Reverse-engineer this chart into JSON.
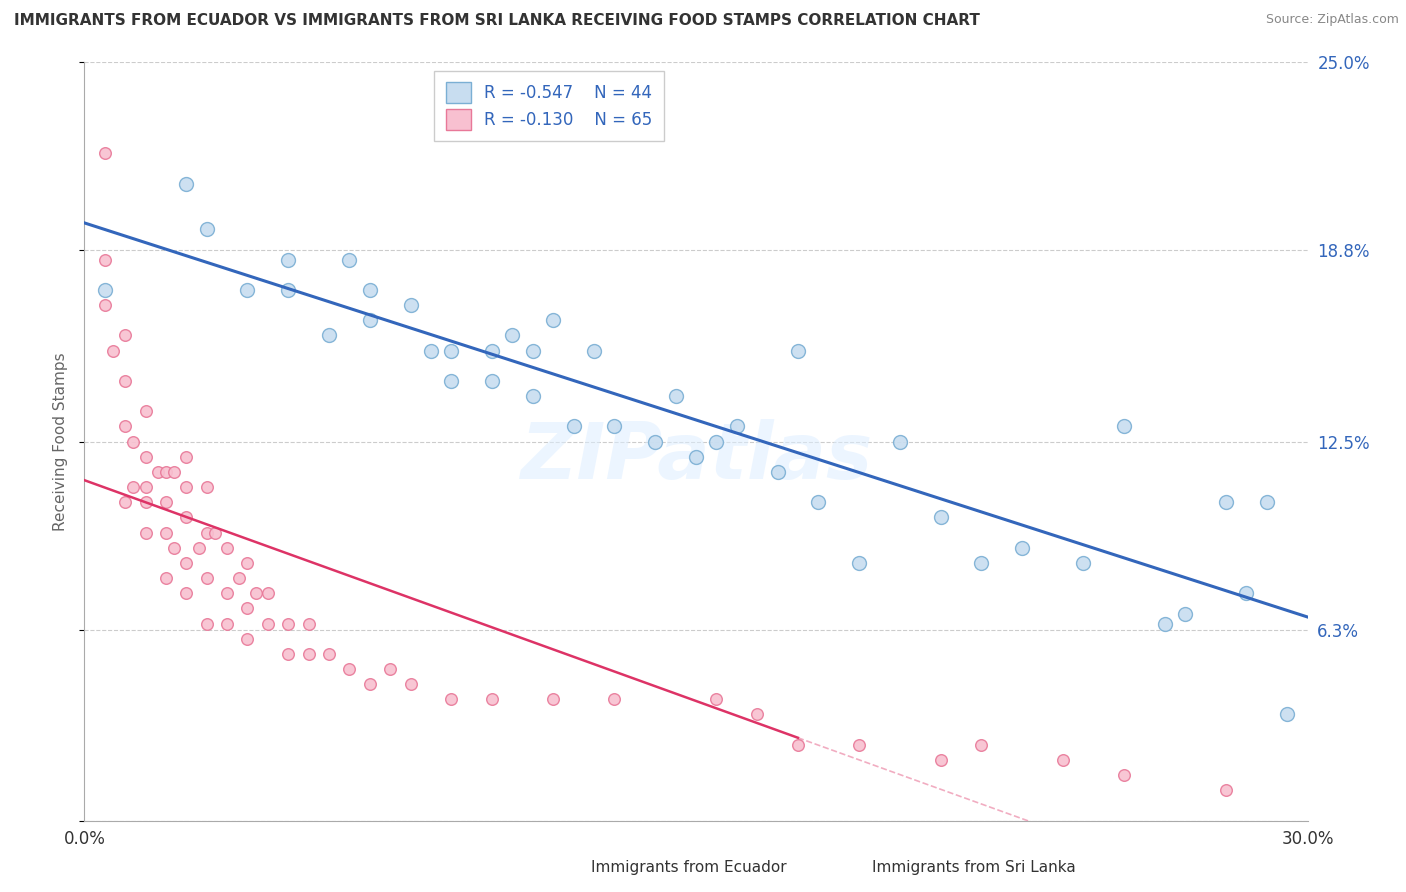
{
  "title": "IMMIGRANTS FROM ECUADOR VS IMMIGRANTS FROM SRI LANKA RECEIVING FOOD STAMPS CORRELATION CHART",
  "source": "Source: ZipAtlas.com",
  "ylabel": "Receiving Food Stamps",
  "xlim": [
    0.0,
    0.3
  ],
  "ylim": [
    0.0,
    0.25
  ],
  "legend_ecuador": {
    "R": "-0.547",
    "N": "44",
    "color": "#b8d4ea"
  },
  "legend_sri_lanka": {
    "R": "-0.130",
    "N": "65",
    "color": "#f5b8c8"
  },
  "ecuador_color": "#c8ddf0",
  "ecuador_edge": "#7bafd4",
  "sri_lanka_color": "#f8c0d0",
  "sri_lanka_edge": "#e87898",
  "regression_ecuador_color": "#3366bb",
  "regression_sri_lanka_color": "#dd3366",
  "watermark": "ZIPatlas",
  "ecuador_x": [
    0.005,
    0.025,
    0.03,
    0.04,
    0.05,
    0.05,
    0.06,
    0.065,
    0.07,
    0.07,
    0.08,
    0.085,
    0.09,
    0.09,
    0.1,
    0.1,
    0.105,
    0.11,
    0.11,
    0.115,
    0.12,
    0.125,
    0.13,
    0.14,
    0.145,
    0.15,
    0.155,
    0.16,
    0.17,
    0.175,
    0.18,
    0.19,
    0.2,
    0.21,
    0.22,
    0.23,
    0.245,
    0.255,
    0.265,
    0.27,
    0.28,
    0.285,
    0.29,
    0.295
  ],
  "ecuador_y": [
    0.175,
    0.21,
    0.195,
    0.175,
    0.175,
    0.185,
    0.16,
    0.185,
    0.165,
    0.175,
    0.17,
    0.155,
    0.155,
    0.145,
    0.145,
    0.155,
    0.16,
    0.14,
    0.155,
    0.165,
    0.13,
    0.155,
    0.13,
    0.125,
    0.14,
    0.12,
    0.125,
    0.13,
    0.115,
    0.155,
    0.105,
    0.085,
    0.125,
    0.1,
    0.085,
    0.09,
    0.085,
    0.13,
    0.065,
    0.068,
    0.105,
    0.075,
    0.105,
    0.035
  ],
  "sri_lanka_x": [
    0.005,
    0.005,
    0.005,
    0.007,
    0.01,
    0.01,
    0.01,
    0.01,
    0.012,
    0.012,
    0.015,
    0.015,
    0.015,
    0.015,
    0.015,
    0.018,
    0.02,
    0.02,
    0.02,
    0.02,
    0.022,
    0.022,
    0.025,
    0.025,
    0.025,
    0.025,
    0.025,
    0.028,
    0.03,
    0.03,
    0.03,
    0.03,
    0.032,
    0.035,
    0.035,
    0.035,
    0.038,
    0.04,
    0.04,
    0.04,
    0.042,
    0.045,
    0.045,
    0.05,
    0.05,
    0.055,
    0.055,
    0.06,
    0.065,
    0.07,
    0.075,
    0.08,
    0.09,
    0.1,
    0.115,
    0.13,
    0.155,
    0.165,
    0.175,
    0.19,
    0.21,
    0.22,
    0.24,
    0.255,
    0.28
  ],
  "sri_lanka_y": [
    0.22,
    0.185,
    0.17,
    0.155,
    0.16,
    0.145,
    0.13,
    0.105,
    0.125,
    0.11,
    0.135,
    0.12,
    0.11,
    0.095,
    0.105,
    0.115,
    0.115,
    0.105,
    0.095,
    0.08,
    0.115,
    0.09,
    0.12,
    0.11,
    0.1,
    0.085,
    0.075,
    0.09,
    0.11,
    0.095,
    0.08,
    0.065,
    0.095,
    0.09,
    0.075,
    0.065,
    0.08,
    0.085,
    0.07,
    0.06,
    0.075,
    0.075,
    0.065,
    0.065,
    0.055,
    0.065,
    0.055,
    0.055,
    0.05,
    0.045,
    0.05,
    0.045,
    0.04,
    0.04,
    0.04,
    0.04,
    0.04,
    0.035,
    0.025,
    0.025,
    0.02,
    0.025,
    0.02,
    0.015,
    0.01
  ],
  "ecuador_marker_size": 100,
  "sri_lanka_marker_size": 70,
  "background_color": "#ffffff",
  "grid_color": "#cccccc",
  "title_color": "#333333",
  "source_color": "#888888",
  "ytick_color": "#3366bb",
  "xtick_color": "#333333"
}
